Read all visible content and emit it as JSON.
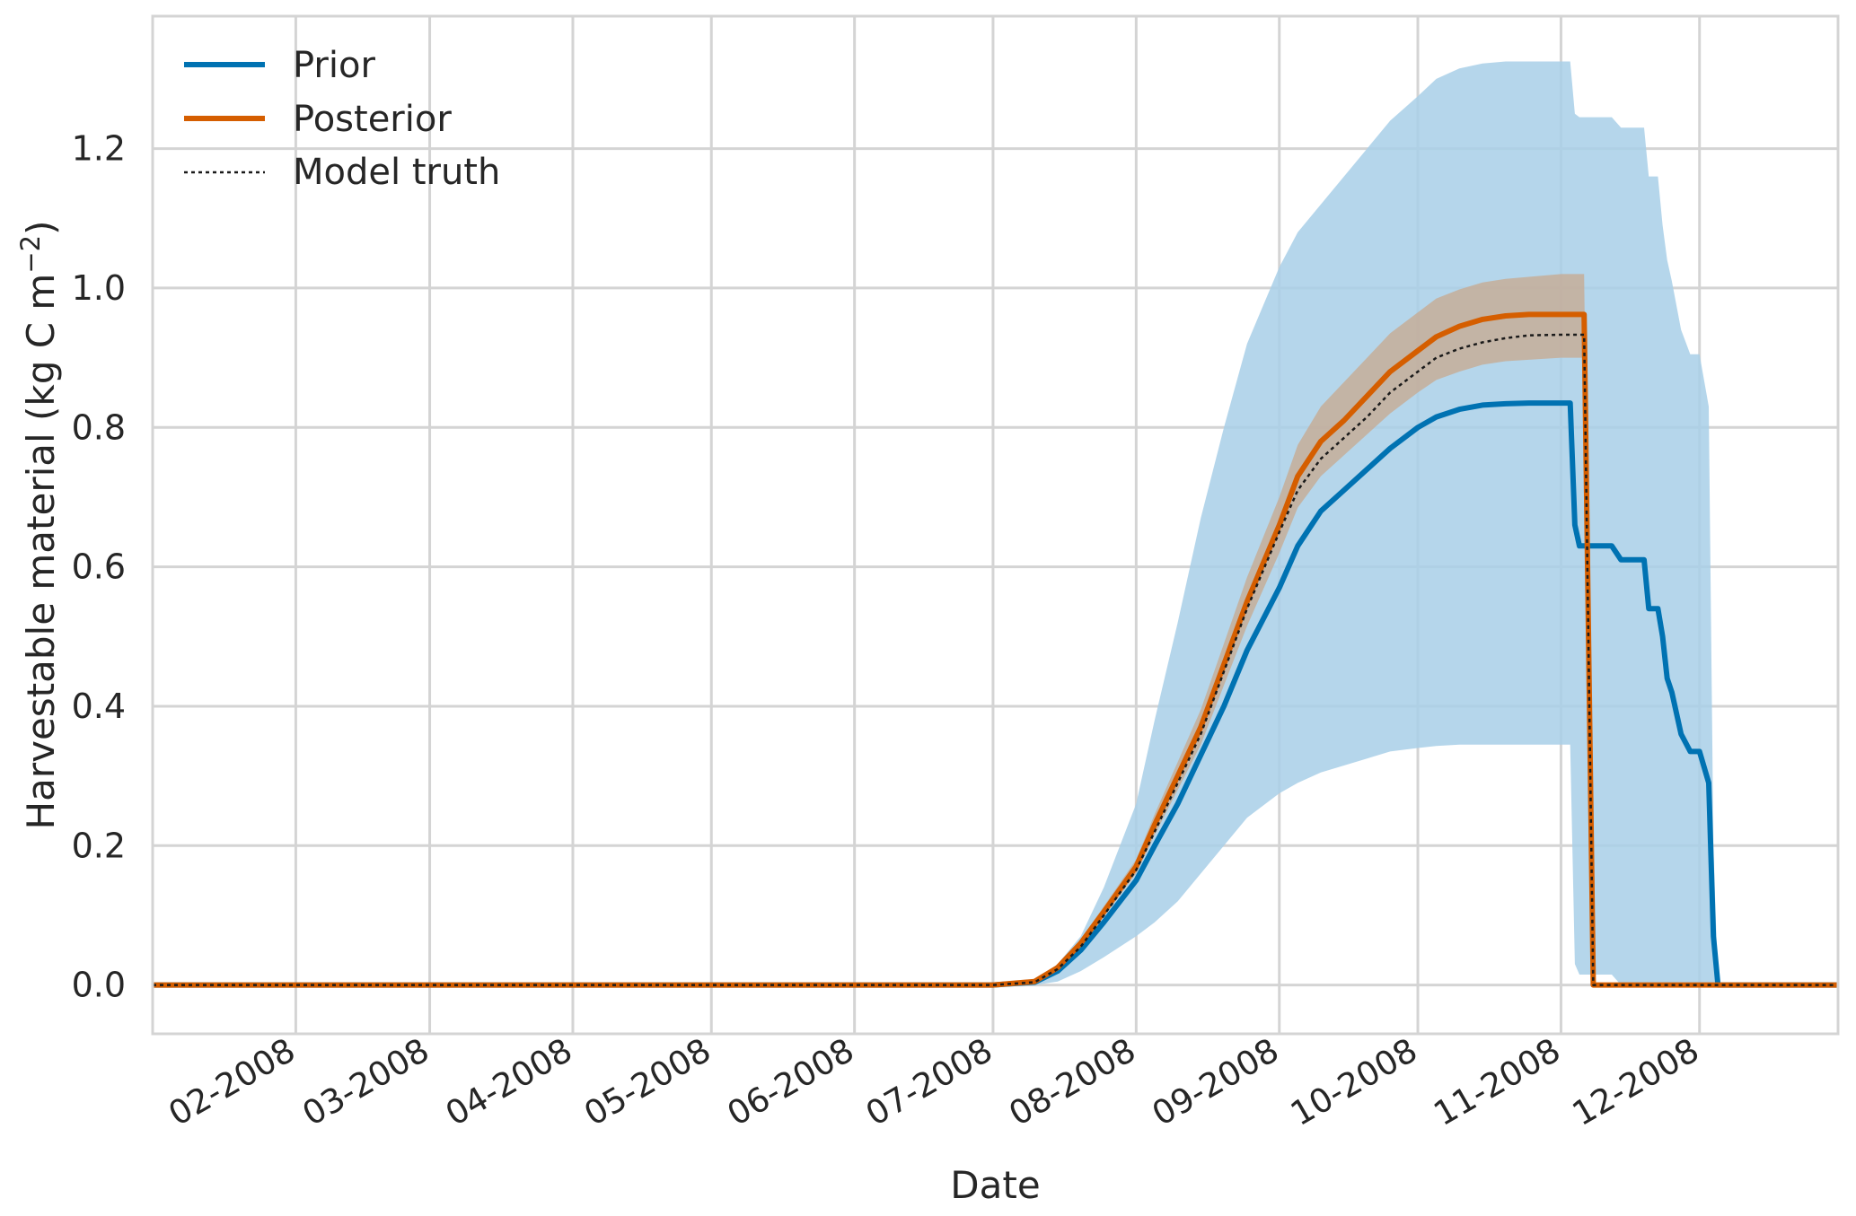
{
  "chart_data": {
    "type": "line",
    "xlabel": "Date",
    "ylabel": "Harvestable material (kg C m",
    "ylabel_superscript": "−2",
    "ylabel_close": ")",
    "x_tick_labels": [
      "02-2008",
      "03-2008",
      "04-2008",
      "05-2008",
      "06-2008",
      "07-2008",
      "08-2008",
      "09-2008",
      "10-2008",
      "11-2008",
      "12-2008"
    ],
    "x_tick_dates": [
      "2008-02-01",
      "2008-03-01",
      "2008-04-01",
      "2008-05-01",
      "2008-06-01",
      "2008-07-01",
      "2008-08-01",
      "2008-09-01",
      "2008-10-01",
      "2008-11-01",
      "2008-12-01"
    ],
    "xlim": [
      "2008-01-01",
      "2008-12-31"
    ],
    "y_ticks": [
      0.0,
      0.2,
      0.4,
      0.6,
      0.8,
      1.0,
      1.2
    ],
    "y_tick_labels": [
      "0.0",
      "0.2",
      "0.4",
      "0.6",
      "0.8",
      "1.0",
      "1.2"
    ],
    "ylim": [
      -0.07,
      1.39
    ],
    "grid": true,
    "legend_position": "top-left",
    "series": [
      {
        "name": "Prior",
        "color": "#0072b2",
        "style": "solid",
        "band_color": "#a8cfe8",
        "points": [
          [
            "2008-01-01",
            0.0
          ],
          [
            "2008-07-01",
            0.0
          ],
          [
            "2008-07-10",
            0.004
          ],
          [
            "2008-07-15",
            0.02
          ],
          [
            "2008-07-20",
            0.05
          ],
          [
            "2008-07-25",
            0.09
          ],
          [
            "2008-08-01",
            0.15
          ],
          [
            "2008-08-05",
            0.2
          ],
          [
            "2008-08-10",
            0.26
          ],
          [
            "2008-08-15",
            0.33
          ],
          [
            "2008-08-20",
            0.4
          ],
          [
            "2008-08-25",
            0.48
          ],
          [
            "2008-09-01",
            0.57
          ],
          [
            "2008-09-05",
            0.63
          ],
          [
            "2008-09-10",
            0.68
          ],
          [
            "2008-09-15",
            0.71
          ],
          [
            "2008-09-20",
            0.74
          ],
          [
            "2008-09-25",
            0.77
          ],
          [
            "2008-10-01",
            0.8
          ],
          [
            "2008-10-05",
            0.815
          ],
          [
            "2008-10-10",
            0.826
          ],
          [
            "2008-10-15",
            0.832
          ],
          [
            "2008-10-20",
            0.834
          ],
          [
            "2008-10-25",
            0.835
          ],
          [
            "2008-11-01",
            0.835
          ],
          [
            "2008-11-03",
            0.835
          ],
          [
            "2008-11-04",
            0.66
          ],
          [
            "2008-11-05",
            0.63
          ],
          [
            "2008-11-12",
            0.63
          ],
          [
            "2008-11-14",
            0.61
          ],
          [
            "2008-11-19",
            0.61
          ],
          [
            "2008-11-20",
            0.54
          ],
          [
            "2008-11-22",
            0.54
          ],
          [
            "2008-11-23",
            0.5
          ],
          [
            "2008-11-24",
            0.44
          ],
          [
            "2008-11-25",
            0.42
          ],
          [
            "2008-11-27",
            0.36
          ],
          [
            "2008-11-29",
            0.335
          ],
          [
            "2008-12-01",
            0.335
          ],
          [
            "2008-12-03",
            0.29
          ],
          [
            "2008-12-04",
            0.07
          ],
          [
            "2008-12-05",
            0.0
          ],
          [
            "2008-12-31",
            0.0
          ]
        ],
        "band": [
          [
            "2008-07-01",
            0.0,
            0.0
          ],
          [
            "2008-07-10",
            0.0,
            0.006
          ],
          [
            "2008-07-15",
            0.005,
            0.03
          ],
          [
            "2008-07-20",
            0.02,
            0.07
          ],
          [
            "2008-07-25",
            0.04,
            0.14
          ],
          [
            "2008-08-01",
            0.07,
            0.26
          ],
          [
            "2008-08-05",
            0.09,
            0.38
          ],
          [
            "2008-08-10",
            0.12,
            0.52
          ],
          [
            "2008-08-15",
            0.16,
            0.67
          ],
          [
            "2008-08-20",
            0.2,
            0.8
          ],
          [
            "2008-08-25",
            0.24,
            0.92
          ],
          [
            "2008-09-01",
            0.275,
            1.03
          ],
          [
            "2008-09-05",
            0.29,
            1.08
          ],
          [
            "2008-09-10",
            0.305,
            1.12
          ],
          [
            "2008-09-15",
            0.315,
            1.16
          ],
          [
            "2008-09-20",
            0.325,
            1.2
          ],
          [
            "2008-09-25",
            0.335,
            1.24
          ],
          [
            "2008-10-01",
            0.34,
            1.275
          ],
          [
            "2008-10-05",
            0.343,
            1.3
          ],
          [
            "2008-10-10",
            0.345,
            1.315
          ],
          [
            "2008-10-15",
            0.345,
            1.322
          ],
          [
            "2008-10-20",
            0.345,
            1.325
          ],
          [
            "2008-10-25",
            0.345,
            1.325
          ],
          [
            "2008-11-01",
            0.345,
            1.325
          ],
          [
            "2008-11-03",
            0.345,
            1.325
          ],
          [
            "2008-11-04",
            0.03,
            1.25
          ],
          [
            "2008-11-05",
            0.015,
            1.245
          ],
          [
            "2008-11-12",
            0.015,
            1.245
          ],
          [
            "2008-11-14",
            0.0,
            1.23
          ],
          [
            "2008-11-19",
            0.0,
            1.23
          ],
          [
            "2008-11-20",
            0.0,
            1.16
          ],
          [
            "2008-11-22",
            0.0,
            1.16
          ],
          [
            "2008-11-23",
            0.0,
            1.09
          ],
          [
            "2008-11-24",
            0.0,
            1.04
          ],
          [
            "2008-11-25",
            0.0,
            1.01
          ],
          [
            "2008-11-27",
            0.0,
            0.94
          ],
          [
            "2008-11-29",
            0.0,
            0.905
          ],
          [
            "2008-12-01",
            0.0,
            0.905
          ],
          [
            "2008-12-03",
            0.0,
            0.83
          ],
          [
            "2008-12-04",
            0.0,
            0.2
          ],
          [
            "2008-12-05",
            0.0,
            0.0
          ]
        ]
      },
      {
        "name": "Posterior",
        "color": "#d55e00",
        "style": "solid",
        "band_color": "#c8a88e",
        "points": [
          [
            "2008-01-01",
            0.0
          ],
          [
            "2008-07-01",
            0.0
          ],
          [
            "2008-07-10",
            0.005
          ],
          [
            "2008-07-15",
            0.025
          ],
          [
            "2008-07-20",
            0.06
          ],
          [
            "2008-07-25",
            0.105
          ],
          [
            "2008-08-01",
            0.17
          ],
          [
            "2008-08-05",
            0.23
          ],
          [
            "2008-08-10",
            0.3
          ],
          [
            "2008-08-15",
            0.37
          ],
          [
            "2008-08-20",
            0.46
          ],
          [
            "2008-08-25",
            0.55
          ],
          [
            "2008-09-01",
            0.66
          ],
          [
            "2008-09-05",
            0.73
          ],
          [
            "2008-09-10",
            0.78
          ],
          [
            "2008-09-15",
            0.81
          ],
          [
            "2008-09-20",
            0.845
          ],
          [
            "2008-09-25",
            0.88
          ],
          [
            "2008-10-01",
            0.91
          ],
          [
            "2008-10-05",
            0.93
          ],
          [
            "2008-10-10",
            0.945
          ],
          [
            "2008-10-15",
            0.955
          ],
          [
            "2008-10-20",
            0.96
          ],
          [
            "2008-10-25",
            0.962
          ],
          [
            "2008-11-01",
            0.962
          ],
          [
            "2008-11-06",
            0.962
          ],
          [
            "2008-11-08",
            0.0
          ],
          [
            "2008-12-31",
            0.0
          ]
        ],
        "band": [
          [
            "2008-07-01",
            0.0,
            0.0
          ],
          [
            "2008-07-10",
            0.004,
            0.006
          ],
          [
            "2008-07-15",
            0.022,
            0.028
          ],
          [
            "2008-07-20",
            0.055,
            0.066
          ],
          [
            "2008-07-25",
            0.098,
            0.113
          ],
          [
            "2008-08-01",
            0.16,
            0.18
          ],
          [
            "2008-08-05",
            0.215,
            0.245
          ],
          [
            "2008-08-10",
            0.28,
            0.32
          ],
          [
            "2008-08-15",
            0.345,
            0.395
          ],
          [
            "2008-08-20",
            0.43,
            0.49
          ],
          [
            "2008-08-25",
            0.515,
            0.585
          ],
          [
            "2008-09-01",
            0.62,
            0.7
          ],
          [
            "2008-09-05",
            0.685,
            0.775
          ],
          [
            "2008-09-10",
            0.73,
            0.83
          ],
          [
            "2008-09-15",
            0.76,
            0.865
          ],
          [
            "2008-09-20",
            0.79,
            0.9
          ],
          [
            "2008-09-25",
            0.82,
            0.935
          ],
          [
            "2008-10-01",
            0.85,
            0.965
          ],
          [
            "2008-10-05",
            0.868,
            0.985
          ],
          [
            "2008-10-10",
            0.88,
            0.998
          ],
          [
            "2008-10-15",
            0.89,
            1.008
          ],
          [
            "2008-10-20",
            0.895,
            1.013
          ],
          [
            "2008-10-25",
            0.897,
            1.016
          ],
          [
            "2008-11-01",
            0.9,
            1.02
          ],
          [
            "2008-11-06",
            0.9,
            1.02
          ],
          [
            "2008-11-08",
            0.0,
            0.0
          ]
        ]
      },
      {
        "name": "Model truth",
        "color": "#1a1a1a",
        "style": "dotted",
        "points": [
          [
            "2008-01-01",
            0.0
          ],
          [
            "2008-07-01",
            0.0
          ],
          [
            "2008-07-10",
            0.004
          ],
          [
            "2008-07-15",
            0.023
          ],
          [
            "2008-07-20",
            0.055
          ],
          [
            "2008-07-25",
            0.1
          ],
          [
            "2008-08-01",
            0.165
          ],
          [
            "2008-08-05",
            0.22
          ],
          [
            "2008-08-10",
            0.29
          ],
          [
            "2008-08-15",
            0.36
          ],
          [
            "2008-08-20",
            0.45
          ],
          [
            "2008-08-25",
            0.54
          ],
          [
            "2008-09-01",
            0.65
          ],
          [
            "2008-09-05",
            0.71
          ],
          [
            "2008-09-10",
            0.755
          ],
          [
            "2008-09-15",
            0.785
          ],
          [
            "2008-09-20",
            0.815
          ],
          [
            "2008-09-25",
            0.85
          ],
          [
            "2008-10-01",
            0.88
          ],
          [
            "2008-10-05",
            0.9
          ],
          [
            "2008-10-10",
            0.913
          ],
          [
            "2008-10-15",
            0.922
          ],
          [
            "2008-10-20",
            0.928
          ],
          [
            "2008-10-25",
            0.932
          ],
          [
            "2008-11-01",
            0.933
          ],
          [
            "2008-11-06",
            0.933
          ],
          [
            "2008-11-08",
            0.0
          ],
          [
            "2008-12-31",
            0.0
          ]
        ]
      }
    ]
  }
}
